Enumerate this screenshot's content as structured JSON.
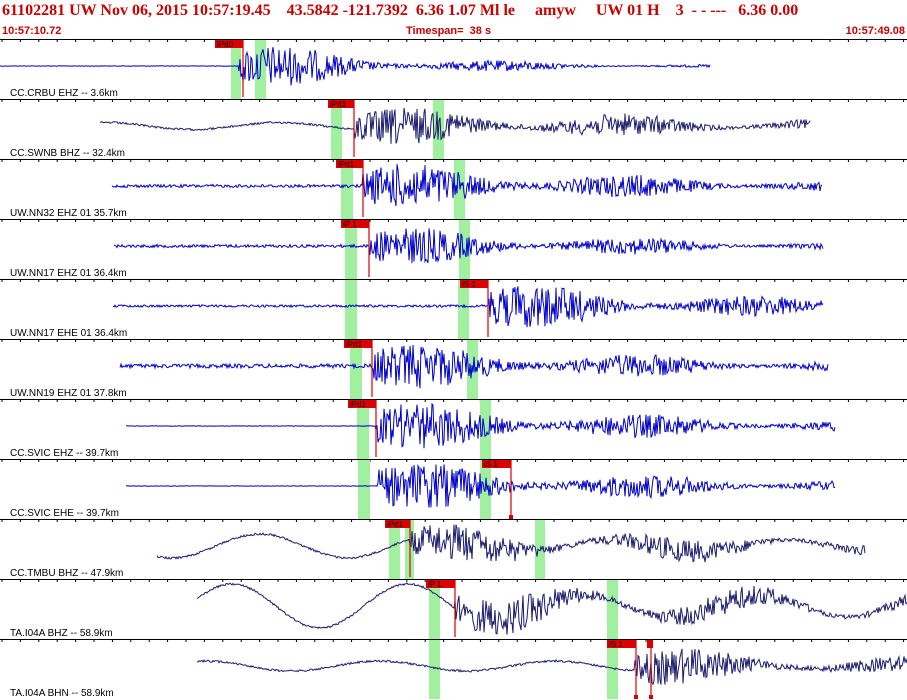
{
  "header": {
    "event_line": "61102281 UW Nov 06, 2015 10:57:19.45    43.5842 -121.7392  6.36 1.07 Ml le     amyw     UW 01 H    3  - - ---   6.36 0.00",
    "start_time": "10:57:10.72",
    "timespan": "Timespan=  38 s",
    "end_time": "10:57:49.08"
  },
  "colors": {
    "header_text": "#cc0000",
    "trace_blue": "#0000cc",
    "trace_navy": "#1c1c6e",
    "pick_red": "#dd0000",
    "window_green": "#a0f0a0",
    "divider": "#000000"
  },
  "panels": [
    {
      "label": "CC.CRBU EHZ -- 3.6km",
      "trace_color": "blue",
      "flat_start": 0,
      "flat_end": 239,
      "signal_start": 239,
      "signal_end": 710,
      "amp_flat": 0.2,
      "amp_peak": 27,
      "decay": 0.6,
      "green_bands": [
        [
          231,
          241
        ],
        [
          255,
          266
        ]
      ],
      "picks": [
        {
          "label": "iPd0",
          "x": 243,
          "box_left": 215,
          "stem_bottom": 58
        }
      ]
    },
    {
      "label": "CC.SWNB BHZ -- 32.4km",
      "trace_color": "navy",
      "flat_start": 100,
      "flat_end": 355,
      "signal_start": 355,
      "signal_end": 810,
      "amp_flat": 3.5,
      "amp_peak": 27,
      "decay": 0.25,
      "green_bands": [
        [
          331,
          342
        ],
        [
          433,
          444
        ]
      ],
      "picks": [
        {
          "label": "iPd1",
          "x": 354,
          "box_left": 328,
          "stem_bottom": 58
        }
      ]
    },
    {
      "label": "UW.NN32 EHZ 01 35.7km",
      "trace_color": "blue",
      "flat_start": 112,
      "flat_end": 363,
      "signal_start": 363,
      "signal_end": 822,
      "amp_flat": 1.5,
      "amp_peak": 26,
      "decay": 0.3,
      "green_bands": [
        [
          341,
          353
        ],
        [
          454,
          465
        ]
      ],
      "picks": [
        {
          "label": "iPd1",
          "x": 363,
          "box_left": 336,
          "stem_bottom": 58
        }
      ]
    },
    {
      "label": "UW.NN17 EHZ 01 36.4km",
      "trace_color": "blue",
      "flat_start": 114,
      "flat_end": 369,
      "signal_start": 369,
      "signal_end": 823,
      "amp_flat": 1.5,
      "amp_peak": 22,
      "decay": 0.35,
      "green_bands": [
        [
          345,
          357
        ],
        [
          459,
          470
        ]
      ],
      "picks": [
        {
          "label": "iP 1",
          "x": 369,
          "box_left": 341,
          "stem_bottom": 58
        }
      ]
    },
    {
      "label": "UW.NN17 EHE 01 36.4km",
      "trace_color": "blue",
      "flat_start": 113,
      "flat_end": 489,
      "signal_start": 489,
      "signal_end": 823,
      "amp_flat": 1.2,
      "amp_peak": 27,
      "decay": 0.35,
      "green_bands": [
        [
          345,
          357
        ],
        [
          458,
          469
        ]
      ],
      "picks": [
        {
          "label": "iS 1",
          "x": 488,
          "box_left": 460,
          "stem_bottom": 58
        }
      ]
    },
    {
      "label": "UW.NN19 EHZ 01 37.8km",
      "trace_color": "blue",
      "flat_start": 120,
      "flat_end": 372,
      "signal_start": 372,
      "signal_end": 828,
      "amp_flat": 2.0,
      "amp_peak": 26,
      "decay": 0.3,
      "green_bands": [
        [
          350,
          362
        ],
        [
          467,
          478
        ]
      ],
      "picks": [
        {
          "label": "iPd1",
          "x": 372,
          "box_left": 344,
          "stem_bottom": 58
        }
      ]
    },
    {
      "label": "CC.SVIC EHZ -- 39.7km",
      "trace_color": "blue",
      "flat_start": 126,
      "flat_end": 376,
      "signal_start": 376,
      "signal_end": 835,
      "amp_flat": 0.2,
      "amp_peak": 27,
      "decay": 0.3,
      "green_bands": [
        [
          357,
          369
        ],
        [
          480,
          491
        ]
      ],
      "picks": [
        {
          "label": "iPd1",
          "x": 376,
          "box_left": 348,
          "stem_bottom": 58
        }
      ]
    },
    {
      "label": "CC.SVIC EHE -- 39.7km",
      "trace_color": "blue",
      "flat_start": 126,
      "flat_end": 378,
      "signal_start": 378,
      "signal_end": 835,
      "amp_flat": 0.2,
      "amp_peak": 27,
      "decay": 0.3,
      "green_bands": [
        [
          358,
          370
        ],
        [
          480,
          491
        ]
      ],
      "picks": [
        {
          "label": "iS 1",
          "x": 511,
          "box_left": 482,
          "stem_bottom": 58,
          "dot": true
        }
      ]
    },
    {
      "label": "CC.TMBU BHZ -- 47.9km",
      "trace_color": "navy",
      "flat_start": 157,
      "flat_end": 410,
      "signal_start": 410,
      "signal_end": 865,
      "amp_flat": 12,
      "amp_peak": 25,
      "decay": 0.2,
      "green_bands": [
        [
          389,
          400
        ],
        [
          405,
          414
        ],
        [
          535,
          545
        ]
      ],
      "picks": [
        {
          "label": "iPd1",
          "x": 410,
          "box_left": 385,
          "stem_bottom": 58
        }
      ]
    },
    {
      "label": "TA.I04A BHZ -- 58.9km",
      "trace_color": "navy",
      "flat_start": 197,
      "flat_end": 455,
      "signal_start": 455,
      "signal_end": 907,
      "amp_flat": 22,
      "amp_peak": 26,
      "decay": 0.2,
      "green_bands": [
        [
          429,
          440
        ],
        [
          607,
          618
        ]
      ],
      "picks": [
        {
          "label": "iP 1",
          "x": 455,
          "box_left": 426,
          "stem_bottom": 58
        }
      ]
    },
    {
      "label": "TA.I04A BHN -- 58.9km",
      "trace_color": "navy",
      "flat_start": 197,
      "flat_end": 635,
      "signal_start": 635,
      "signal_end": 907,
      "amp_flat": 5,
      "amp_peak": 27,
      "decay": 0.4,
      "green_bands": [
        [
          429,
          440
        ],
        [
          607,
          618
        ]
      ],
      "picks": [
        {
          "label": "iS 1",
          "x": 636,
          "box_left": 607,
          "stem_bottom": 58,
          "dot": true
        },
        {
          "label": "",
          "x": 651,
          "box_left": 647,
          "stem_bottom": 58,
          "dot": true
        }
      ]
    }
  ]
}
